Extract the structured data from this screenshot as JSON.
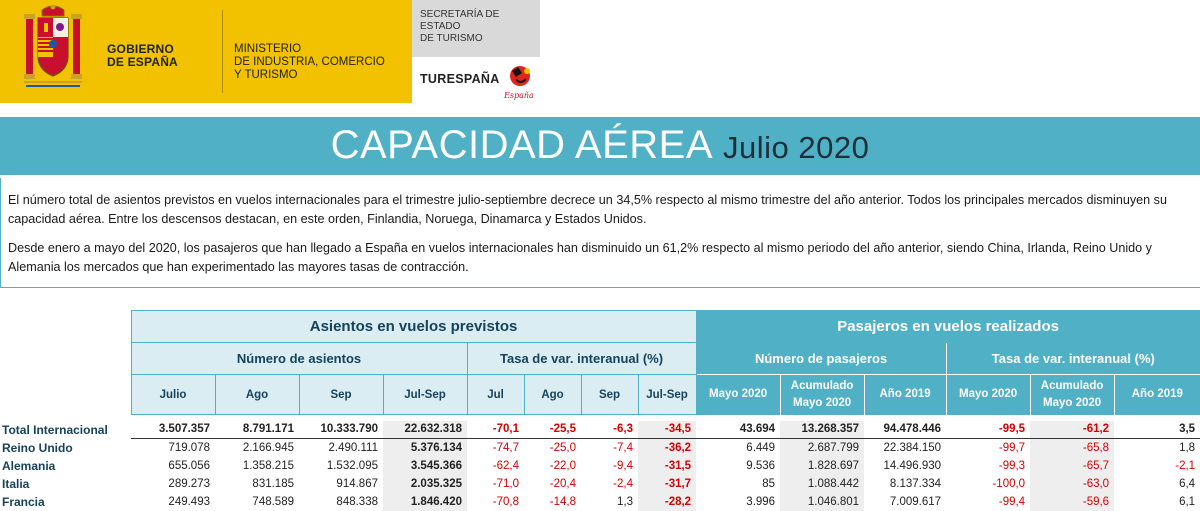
{
  "header": {
    "gov_label": "GOBIERNO\nDE ESPAÑA",
    "ministry_label": "MINISTERIO\nDE INDUSTRIA, COMERCIO\nY TURISMO",
    "secretaria_label": "SECRETARÍA DE ESTADO\nDE TURISMO",
    "turespana_label": "TURESPAÑA",
    "espana_logo_text": "España",
    "colors": {
      "gov_yellow": "#f2c200",
      "banner_blue": "#4fb0c6",
      "negative_red": "#d40000"
    }
  },
  "banner": {
    "title": "CAPACIDAD AÉREA",
    "subtitle": "Julio 2020"
  },
  "intro": {
    "paragraph_1": "El número total de asientos previstos en vuelos internacionales para el trimestre julio-septiembre decrece un 34,5% respecto al mismo trimestre del año anterior. Todos los principales mercados disminuyen su capacidad aérea. Entre los descensos destacan, en este orden,  Finlandia, Noruega, Dinamarca y Estados Unidos.",
    "paragraph_2": "Desde enero a mayo del 2020, los pasajeros que han llegado a España en vuelos internacionales han disminuido un 61,2% respecto al mismo periodo del año anterior, siendo China, Irlanda, Reino Unido y Alemania los mercados que han experimentado las mayores tasas de contracción."
  },
  "table": {
    "group_asientos": "Asientos en vuelos previstos",
    "group_pasajeros": "Pasajeros en vuelos realizados",
    "sub_num_asientos": "Número de asientos",
    "sub_tasa_asientos": "Tasa de var. interanual (%)",
    "sub_num_pasajeros": "Número de pasajeros",
    "sub_tasa_pasajeros": "Tasa de var. interanual (%)",
    "cols": {
      "julio": "Julio",
      "ago": "Ago",
      "sep": "Sep",
      "julsep": "Jul-Sep",
      "t_jul": "Jul",
      "t_ago": "Ago",
      "t_sep": "Sep",
      "t_julsep": "Jul-Sep",
      "mayo2020": "Mayo 2020",
      "acum_line1": "Acumulado",
      "acum_line2": "Mayo 2020",
      "anio2019": "Año 2019",
      "t_mayo2020": "Mayo 2020",
      "t_acum_line1": "Acumulado",
      "t_acum_line2": "Mayo 2020",
      "t_anio2019": "Año 2019"
    },
    "rows": [
      {
        "label": "Total Internacional",
        "julio": "3.507.357",
        "ago": "8.791.171",
        "sep": "10.333.790",
        "julsep": "22.632.318",
        "t_jul": "-70,1",
        "t_ago": "-25,5",
        "t_sep": "-6,3",
        "t_julsep": "-34,5",
        "mayo2020": "43.694",
        "acum": "13.268.357",
        "anio2019": "94.478.446",
        "t_mayo2020": "-99,5",
        "t_acum": "-61,2",
        "t_anio2019": "3,5"
      },
      {
        "label": "Reino Unido",
        "julio": "719.078",
        "ago": "2.166.945",
        "sep": "2.490.111",
        "julsep": "5.376.134",
        "t_jul": "-74,7",
        "t_ago": "-25,0",
        "t_sep": "-7,4",
        "t_julsep": "-36,2",
        "mayo2020": "6.449",
        "acum": "2.687.799",
        "anio2019": "22.384.150",
        "t_mayo2020": "-99,7",
        "t_acum": "-65,8",
        "t_anio2019": "1,8"
      },
      {
        "label": "Alemania",
        "julio": "655.056",
        "ago": "1.358.215",
        "sep": "1.532.095",
        "julsep": "3.545.366",
        "t_jul": "-62,4",
        "t_ago": "-22,0",
        "t_sep": "-9,4",
        "t_julsep": "-31,5",
        "mayo2020": "9.536",
        "acum": "1.828.697",
        "anio2019": "14.496.930",
        "t_mayo2020": "-99,3",
        "t_acum": "-65,7",
        "t_anio2019": "-2,1"
      },
      {
        "label": "Italia",
        "julio": "289.273",
        "ago": "831.185",
        "sep": "914.867",
        "julsep": "2.035.325",
        "t_jul": "-71,0",
        "t_ago": "-20,4",
        "t_sep": "-2,4",
        "t_julsep": "-31,7",
        "mayo2020": "85",
        "acum": "1.088.442",
        "anio2019": "8.137.334",
        "t_mayo2020": "-100,0",
        "t_acum": "-63,0",
        "t_anio2019": "6,4"
      },
      {
        "label": "Francia",
        "julio": "249.493",
        "ago": "748.589",
        "sep": "848.338",
        "julsep": "1.846.420",
        "t_jul": "-70,8",
        "t_ago": "-14,8",
        "t_sep": "1,3",
        "t_julsep": "-28,2",
        "mayo2020": "3.996",
        "acum": "1.046.801",
        "anio2019": "7.009.617",
        "t_mayo2020": "-99,4",
        "t_acum": "-59,6",
        "t_anio2019": "6,1"
      }
    ]
  }
}
